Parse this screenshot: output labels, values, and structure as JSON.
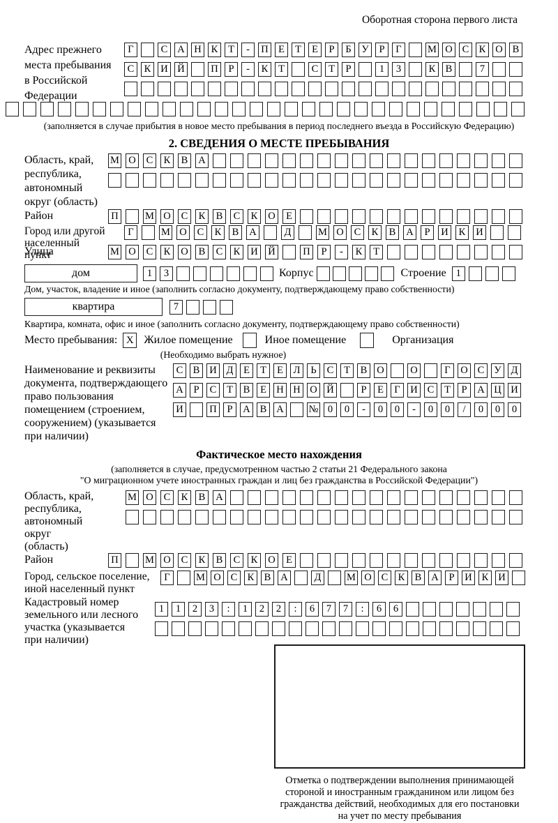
{
  "header": {
    "note": "Оборотная сторона первого листа"
  },
  "prev_address": {
    "label_lines": [
      "Адрес прежнего",
      "места пребывания",
      "в Российской",
      "Федерации"
    ],
    "rows": [
      [
        "Г",
        "",
        "С",
        "А",
        "Н",
        "К",
        "Т",
        "-",
        "П",
        "Е",
        "Т",
        "Е",
        "Р",
        "Б",
        "У",
        "Р",
        "Г",
        "",
        "М",
        "О",
        "С",
        "К",
        "О",
        "В"
      ],
      [
        "С",
        "К",
        "И",
        "Й",
        "",
        "П",
        "Р",
        "-",
        "К",
        "Т",
        "",
        "С",
        "Т",
        "Р",
        "",
        "1",
        "3",
        "",
        "К",
        "В",
        "",
        "7",
        "",
        ""
      ],
      [
        "",
        "",
        "",
        "",
        "",
        "",
        "",
        "",
        "",
        "",
        "",
        "",
        "",
        "",
        "",
        "",
        "",
        "",
        "",
        "",
        "",
        "",
        "",
        ""
      ],
      [
        "",
        "",
        "",
        "",
        "",
        "",
        "",
        "",
        "",
        "",
        "",
        "",
        "",
        "",
        "",
        "",
        "",
        "",
        "",
        "",
        "",
        "",
        "",
        "",
        "",
        "",
        "",
        "",
        "",
        ""
      ]
    ],
    "caption": "(заполняется в случае прибытия в новое место пребывания в период последнего въезда в Российскую Федерацию)"
  },
  "section2": {
    "title": "2. СВЕДЕНИЯ О МЕСТЕ ПРЕБЫВАНИЯ",
    "region": {
      "label_lines": [
        "Область, край,",
        "республика,",
        "автономный",
        "округ (область)"
      ],
      "rows": [
        [
          "М",
          "О",
          "С",
          "К",
          "В",
          "А",
          "",
          "",
          "",
          "",
          "",
          "",
          "",
          "",
          "",
          "",
          "",
          "",
          "",
          "",
          "",
          "",
          "",
          ""
        ],
        [
          "",
          "",
          "",
          "",
          "",
          "",
          "",
          "",
          "",
          "",
          "",
          "",
          "",
          "",
          "",
          "",
          "",
          "",
          "",
          "",
          "",
          "",
          "",
          ""
        ]
      ]
    },
    "district": {
      "label": "Район",
      "row": [
        "П",
        "",
        "М",
        "О",
        "С",
        "К",
        "В",
        "С",
        "К",
        "О",
        "Е",
        "",
        "",
        "",
        "",
        "",
        "",
        "",
        "",
        "",
        "",
        "",
        "",
        ""
      ]
    },
    "city": {
      "label_lines": [
        "Город или другой",
        "населенный пункт"
      ],
      "row": [
        "Г",
        "",
        "М",
        "О",
        "С",
        "К",
        "В",
        "А",
        "",
        "Д",
        "",
        "М",
        "О",
        "С",
        "К",
        "В",
        "А",
        "Р",
        "И",
        "К",
        "И",
        "",
        ""
      ]
    },
    "street": {
      "label": "Улица",
      "row": [
        "М",
        "О",
        "С",
        "К",
        "О",
        "В",
        "С",
        "К",
        "И",
        "Й",
        "",
        "П",
        "Р",
        "-",
        "К",
        "Т",
        "",
        "",
        "",
        "",
        "",
        "",
        "",
        ""
      ]
    },
    "house": {
      "box_label": "дом",
      "cells": [
        "1",
        "3",
        "",
        "",
        "",
        "",
        "",
        ""
      ],
      "korpus_label": "Корпус",
      "korpus_cells": [
        "",
        "",
        "",
        "",
        ""
      ],
      "stroenie_label": "Строение",
      "stroenie_cells": [
        "1",
        "",
        "",
        ""
      ],
      "caption": "Дом, участок, владение и иное (заполнить согласно документу, подтверждающему право собственности)"
    },
    "apartment": {
      "box_label": "квартира",
      "cells": [
        "7",
        "",
        "",
        ""
      ],
      "caption": "Квартира, комната, офис и иное (заполнить согласно документу, подтверждающему право собственности)"
    },
    "stay": {
      "label": "Место пребывания:",
      "note": "(Необходимо выбрать нужное)",
      "options": [
        {
          "label": "Жилое помещение",
          "mark": "X"
        },
        {
          "label": "Иное помещение",
          "mark": ""
        },
        {
          "label": "Организация",
          "mark": ""
        }
      ]
    },
    "document": {
      "label_lines": [
        "Наименование и реквизиты",
        "документа, подтверждающего",
        "право пользования",
        "помещением (строением,",
        "сооружением) (указывается",
        "при наличии)"
      ],
      "rows": [
        [
          "С",
          "В",
          "И",
          "Д",
          "Е",
          "Т",
          "Е",
          "Л",
          "Ь",
          "С",
          "Т",
          "В",
          "О",
          "",
          "О",
          "",
          "Г",
          "О",
          "С",
          "У",
          "Д"
        ],
        [
          "А",
          "Р",
          "С",
          "Т",
          "В",
          "Е",
          "Н",
          "Н",
          "О",
          "Й",
          "",
          "Р",
          "Е",
          "Г",
          "И",
          "С",
          "Т",
          "Р",
          "А",
          "Ц",
          "И"
        ],
        [
          "И",
          "",
          "П",
          "Р",
          "А",
          "В",
          "А",
          "",
          "№",
          "0",
          "0",
          "-",
          "0",
          "0",
          "-",
          "0",
          "0",
          "/",
          "0",
          "0",
          "0"
        ]
      ]
    }
  },
  "factual": {
    "title": "Фактическое место нахождения",
    "caption_lines": [
      "(заполняется в случае, предусмотренном частью 2 статьи 21 Федерального закона",
      "\"О миграционном учете иностранных граждан и лиц без гражданства в Российской Федерации\")"
    ],
    "region": {
      "label_lines": [
        "Область, край,",
        "республика,",
        "автономный округ",
        "(область)"
      ],
      "rows": [
        [
          "М",
          "О",
          "С",
          "К",
          "В",
          "А",
          "",
          "",
          "",
          "",
          "",
          "",
          "",
          "",
          "",
          "",
          "",
          "",
          "",
          "",
          "",
          "",
          ""
        ],
        [
          "",
          "",
          "",
          "",
          "",
          "",
          "",
          "",
          "",
          "",
          "",
          "",
          "",
          "",
          "",
          "",
          "",
          "",
          "",
          "",
          "",
          "",
          ""
        ]
      ]
    },
    "district": {
      "label": "Район",
      "row": [
        "П",
        "",
        "М",
        "О",
        "С",
        "К",
        "В",
        "С",
        "К",
        "О",
        "Е",
        "",
        "",
        "",
        "",
        "",
        "",
        "",
        "",
        "",
        "",
        "",
        "",
        ""
      ]
    },
    "city": {
      "label_lines": [
        "Город, сельское поселение,",
        "иной населенный пункт"
      ],
      "row": [
        "Г",
        "",
        "М",
        "О",
        "С",
        "К",
        "В",
        "А",
        "",
        "Д",
        "",
        "М",
        "О",
        "С",
        "К",
        "В",
        "А",
        "Р",
        "И",
        "К",
        "И",
        ""
      ]
    },
    "cadastre": {
      "label_lines": [
        "Кадастровый номер",
        "земельного или лесного",
        "участка (указывается",
        "при наличии)"
      ],
      "rows": [
        [
          "1",
          "1",
          "2",
          "3",
          ":",
          "1",
          "2",
          "2",
          ":",
          "6",
          "7",
          "7",
          ":",
          "6",
          "6",
          "",
          "",
          "",
          "",
          "",
          "",
          ""
        ],
        [
          "",
          "",
          "",
          "",
          "",
          "",
          "",
          "",
          "",
          "",
          "",
          "",
          "",
          "",
          "",
          "",
          "",
          "",
          "",
          "",
          "",
          ""
        ]
      ]
    },
    "stamp_caption_lines": [
      "Отметка о подтверждении выполнения принимающей",
      "стороной и иностранным гражданином или лицом без",
      "гражданства действий, необходимых для его постановки",
      "на учет по месту пребывания"
    ]
  }
}
